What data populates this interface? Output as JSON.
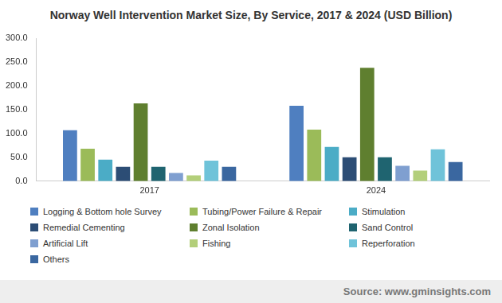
{
  "chart_data": {
    "type": "bar",
    "title": "Norway Well Intervention Market Size, By Service, 2017 & 2024 (USD Billion)",
    "source": "Source: www.gminsights.com",
    "categories": [
      "2017",
      "2024"
    ],
    "series": [
      {
        "name": "Logging & Bottom hole Survey",
        "color": "#4f7fc0",
        "values": [
          107,
          158
        ]
      },
      {
        "name": "Tubing/Power Failure & Repair",
        "color": "#9bbb59",
        "values": [
          68,
          108
        ]
      },
      {
        "name": "Stimulation",
        "color": "#4bacc6",
        "values": [
          45,
          72
        ]
      },
      {
        "name": "Remedial Cementing",
        "color": "#2c4d75",
        "values": [
          30,
          50
        ]
      },
      {
        "name": "Zonal Isolation",
        "color": "#5f7f2f",
        "values": [
          163,
          238
        ]
      },
      {
        "name": "Sand Control",
        "color": "#1f6470",
        "values": [
          30,
          50
        ]
      },
      {
        "name": "Artificial Lift",
        "color": "#7f9fd0",
        "values": [
          17,
          32
        ]
      },
      {
        "name": "Fishing",
        "color": "#b3cf7a",
        "values": [
          12,
          22
        ]
      },
      {
        "name": "Reperforation",
        "color": "#6fc3d9",
        "values": [
          43,
          67
        ]
      },
      {
        "name": "Others",
        "color": "#3a67a0",
        "values": [
          30,
          40
        ]
      }
    ],
    "ylim": [
      0,
      300
    ],
    "yticks": [
      {
        "value": 0,
        "label": "0.0"
      },
      {
        "value": 50,
        "label": "50.0"
      },
      {
        "value": 100,
        "label": "100.0"
      },
      {
        "value": 150,
        "label": "150.0"
      },
      {
        "value": 200,
        "label": "200.0"
      },
      {
        "value": 250,
        "label": "250.0"
      },
      {
        "value": 300,
        "label": "300.0"
      }
    ],
    "grid": false,
    "legend": "bottom"
  }
}
